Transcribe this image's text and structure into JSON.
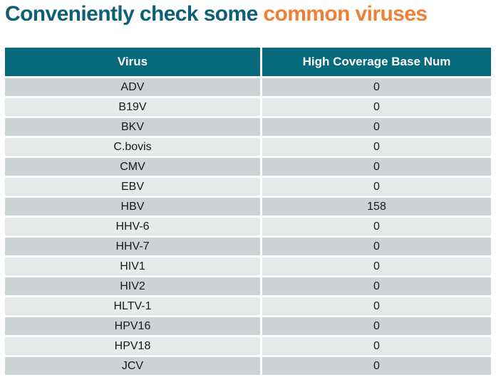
{
  "title": {
    "part1": "Conveniently check some ",
    "part2": "common viruses"
  },
  "colors": {
    "title_teal": "#0d5f75",
    "title_orange": "#ef7f35",
    "header_teal": "#076a7c",
    "row_dark": "#cdd2d4",
    "row_light": "#e7eaea"
  },
  "table": {
    "columns": [
      "Virus",
      "High Coverage Base Num"
    ],
    "rows": [
      {
        "virus": "ADV",
        "value": "0"
      },
      {
        "virus": "B19V",
        "value": "0"
      },
      {
        "virus": "BKV",
        "value": "0"
      },
      {
        "virus": "C.bovis",
        "value": "0"
      },
      {
        "virus": "CMV",
        "value": "0"
      },
      {
        "virus": "EBV",
        "value": "0"
      },
      {
        "virus": "HBV",
        "value": "158"
      },
      {
        "virus": "HHV-6",
        "value": "0"
      },
      {
        "virus": "HHV-7",
        "value": "0"
      },
      {
        "virus": "HIV1",
        "value": "0"
      },
      {
        "virus": "HIV2",
        "value": "0"
      },
      {
        "virus": "HLTV-1",
        "value": "0"
      },
      {
        "virus": "HPV16",
        "value": "0"
      },
      {
        "virus": "HPV18",
        "value": "0"
      },
      {
        "virus": "JCV",
        "value": "0"
      }
    ]
  },
  "chart_data": {
    "type": "table",
    "title": "Conveniently check some common viruses",
    "columns": [
      "Virus",
      "High Coverage Base Num"
    ],
    "rows": [
      [
        "ADV",
        0
      ],
      [
        "B19V",
        0
      ],
      [
        "BKV",
        0
      ],
      [
        "C.bovis",
        0
      ],
      [
        "CMV",
        0
      ],
      [
        "EBV",
        0
      ],
      [
        "HBV",
        158
      ],
      [
        "HHV-6",
        0
      ],
      [
        "HHV-7",
        0
      ],
      [
        "HIV1",
        0
      ],
      [
        "HIV2",
        0
      ],
      [
        "HLTV-1",
        0
      ],
      [
        "HPV16",
        0
      ],
      [
        "HPV18",
        0
      ],
      [
        "JCV",
        0
      ]
    ]
  }
}
